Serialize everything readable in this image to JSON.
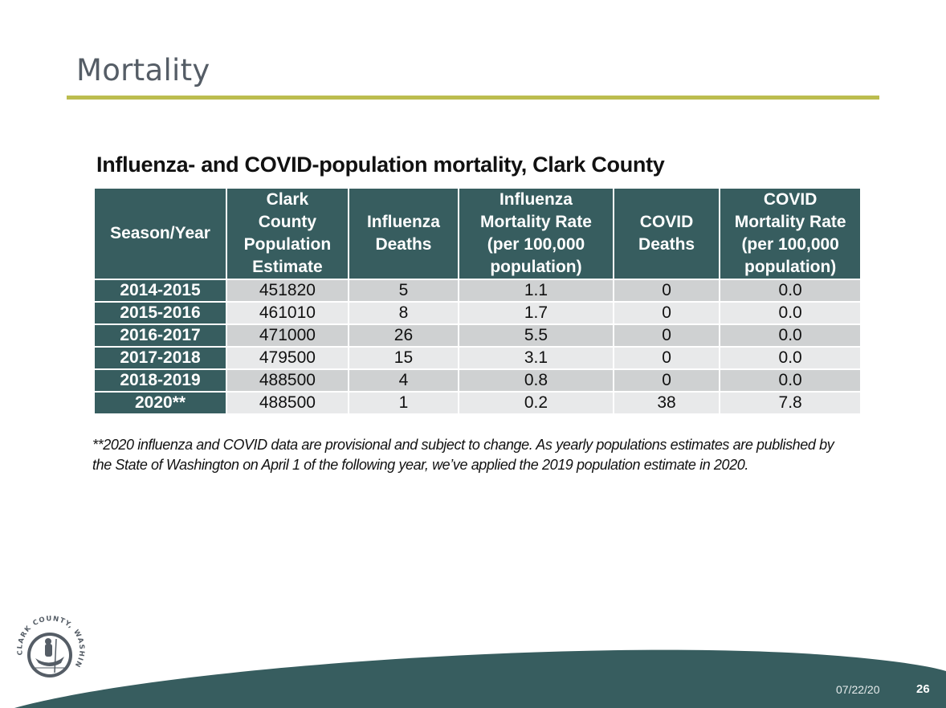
{
  "slide": {
    "title": "Mortality",
    "accent_color": "#bcbd4f",
    "brand_color": "#375d5f"
  },
  "table": {
    "caption": "Influenza- and COVID-population mortality, Clark County",
    "headers": [
      [
        "Season/Year"
      ],
      [
        "Clark",
        "County",
        "Population",
        "Estimate"
      ],
      [
        "Influenza",
        "Deaths"
      ],
      [
        "Influenza",
        "Mortality Rate",
        "(per 100,000",
        "population)"
      ],
      [
        "COVID",
        "Deaths"
      ],
      [
        "COVID",
        "Mortality Rate",
        "(per 100,000",
        "population)"
      ]
    ],
    "rows": [
      [
        "2014-2015",
        "451820",
        "5",
        "1.1",
        "0",
        "0.0"
      ],
      [
        "2015-2016",
        "461010",
        "8",
        "1.7",
        "0",
        "0.0"
      ],
      [
        "2016-2017",
        "471000",
        "26",
        "5.5",
        "0",
        "0.0"
      ],
      [
        "2017-2018",
        "479500",
        "15",
        "3.1",
        "0",
        "0.0"
      ],
      [
        "2018-2019",
        "488500",
        "4",
        "0.8",
        "0",
        "0.0"
      ],
      [
        "2020**",
        "488500",
        "1",
        "0.2",
        "38",
        "7.8"
      ]
    ]
  },
  "footnote": "**2020 influenza and COVID data are provisional and subject to change. As yearly populations estimates are published by the State of Washington on April 1 of the following year, we’ve applied the 2019 population estimate in 2020.",
  "footer": {
    "logo_text": "CLARK COUNTY, WASHINGTON",
    "date": "07/22/20",
    "page_number": "26"
  }
}
